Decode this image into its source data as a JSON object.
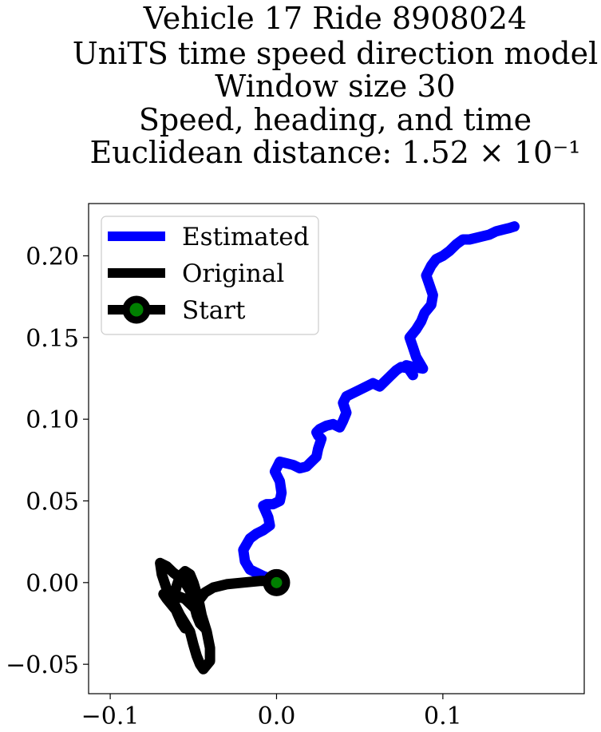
{
  "chart_data": {
    "type": "line",
    "title_lines": [
      "Vehicle 17 Ride 8908024",
      "UniTS time speed direction model",
      "Window size 30",
      "Speed, heading, and time",
      "Euclidean distance: 1.52 × 10⁻¹"
    ],
    "xlabel": "",
    "ylabel": "",
    "xlim": [
      -0.113,
      0.185
    ],
    "ylim": [
      -0.068,
      0.232
    ],
    "x_ticks": [
      -0.1,
      0.0,
      0.1
    ],
    "x_tick_labels": [
      "−0.1",
      "0.0",
      "0.1"
    ],
    "y_ticks": [
      -0.05,
      0.0,
      0.05,
      0.1,
      0.15,
      0.2
    ],
    "y_tick_labels": [
      "−0.05",
      "0.00",
      "0.05",
      "0.10",
      "0.15",
      "0.20"
    ],
    "grid": false,
    "legend_position": "top-left",
    "series": [
      {
        "name": "Estimated",
        "color": "#0000ff",
        "x": [
          0.0,
          -0.008,
          -0.016,
          -0.019,
          -0.02,
          -0.016,
          -0.016,
          -0.012,
          -0.008,
          -0.004,
          -0.005,
          -0.008,
          -0.006,
          -0.002,
          0.002,
          0.003,
          0.002,
          -0.001,
          0.001,
          0.002,
          0.006,
          0.01,
          0.014,
          0.018,
          0.021,
          0.024,
          0.025,
          0.027,
          0.025,
          0.024,
          0.026,
          0.03,
          0.034,
          0.038,
          0.04,
          0.042,
          0.04,
          0.042,
          0.046,
          0.05,
          0.054,
          0.058,
          0.062,
          0.064,
          0.068,
          0.072,
          0.075,
          0.08,
          0.082,
          0.078,
          0.082,
          0.088,
          0.084,
          0.082,
          0.08,
          0.084,
          0.087,
          0.089,
          0.093,
          0.094,
          0.092,
          0.09,
          0.093,
          0.096,
          0.1,
          0.104,
          0.108,
          0.112,
          0.116,
          0.12,
          0.124,
          0.128,
          0.132,
          0.136,
          0.14,
          0.143
        ],
        "y": [
          0.001,
          0.004,
          0.008,
          0.013,
          0.02,
          0.027,
          0.027,
          0.03,
          0.032,
          0.035,
          0.04,
          0.047,
          0.048,
          0.048,
          0.05,
          0.055,
          0.062,
          0.068,
          0.072,
          0.074,
          0.073,
          0.072,
          0.07,
          0.071,
          0.074,
          0.077,
          0.082,
          0.088,
          0.09,
          0.092,
          0.094,
          0.096,
          0.097,
          0.095,
          0.099,
          0.104,
          0.11,
          0.114,
          0.116,
          0.118,
          0.12,
          0.122,
          0.12,
          0.122,
          0.126,
          0.13,
          0.132,
          0.131,
          0.127,
          0.133,
          0.132,
          0.131,
          0.138,
          0.144,
          0.15,
          0.155,
          0.16,
          0.165,
          0.17,
          0.176,
          0.182,
          0.188,
          0.194,
          0.198,
          0.2,
          0.203,
          0.207,
          0.21,
          0.21,
          0.211,
          0.212,
          0.213,
          0.215,
          0.216,
          0.217,
          0.218
        ]
      },
      {
        "name": "Original",
        "color": "#000000",
        "x": [
          0.0,
          -0.01,
          -0.02,
          -0.03,
          -0.038,
          -0.043,
          -0.046,
          -0.048,
          -0.05,
          -0.055,
          -0.06,
          -0.065,
          -0.068,
          -0.066,
          -0.062,
          -0.058,
          -0.055,
          -0.052,
          -0.05,
          -0.048,
          -0.046,
          -0.044,
          -0.04,
          -0.04,
          -0.042,
          -0.045,
          -0.047,
          -0.05,
          -0.052,
          -0.055,
          -0.058,
          -0.06,
          -0.062,
          -0.06,
          -0.057,
          -0.055,
          -0.058,
          -0.062,
          -0.066,
          -0.069,
          -0.07,
          -0.066,
          -0.062,
          -0.058,
          -0.055,
          -0.052,
          -0.05,
          -0.048,
          -0.046,
          -0.043
        ],
        "y": [
          0.001,
          0.001,
          0.0,
          -0.001,
          -0.003,
          -0.006,
          -0.01,
          -0.013,
          -0.015,
          -0.01,
          -0.008,
          -0.006,
          -0.007,
          -0.01,
          -0.015,
          -0.02,
          -0.025,
          -0.03,
          -0.038,
          -0.045,
          -0.05,
          -0.053,
          -0.048,
          -0.04,
          -0.03,
          -0.02,
          -0.01,
          0.0,
          0.005,
          0.007,
          0.004,
          -0.002,
          -0.01,
          -0.018,
          -0.025,
          -0.028,
          -0.02,
          -0.012,
          -0.004,
          0.005,
          0.012,
          0.01,
          0.006,
          0.003,
          0.0,
          -0.005,
          -0.012,
          -0.02,
          -0.025,
          -0.028
        ]
      }
    ],
    "start_point": {
      "name": "Start",
      "x": 0.0,
      "y": 0.0,
      "fill": "#008000",
      "edge": "#000000"
    }
  }
}
